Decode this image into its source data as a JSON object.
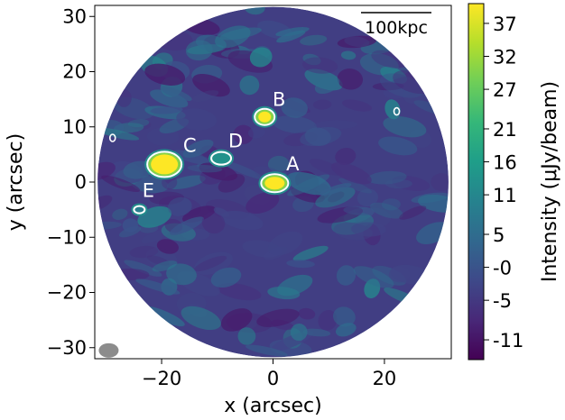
{
  "chart_data": {
    "type": "heatmap",
    "xlabel": "x (arcsec)",
    "ylabel": "y (arcsec)",
    "xlim": [
      -32,
      32
    ],
    "ylim": [
      -32,
      32
    ],
    "x_ticks": [
      -20,
      0,
      20
    ],
    "x_tick_labels": [
      "−20",
      "0",
      "20"
    ],
    "y_ticks": [
      30,
      20,
      10,
      0,
      -10,
      -20,
      -30
    ],
    "y_tick_labels": [
      "30",
      "20",
      "10",
      "0",
      "−10",
      "−20",
      "−30"
    ],
    "field_radius_arcsec": 31.5,
    "scale_bar_label": "100kpc",
    "beam": {
      "x": -29.5,
      "y": -30.5
    },
    "colorbar": {
      "label": "Intensity (μJy/beam)",
      "range": [
        -14,
        40
      ],
      "ticks": [
        37,
        32,
        27,
        21,
        16,
        11,
        5,
        0,
        -5,
        -11
      ],
      "tick_labels": [
        "37",
        "32",
        "27",
        "21",
        "16",
        "11",
        "5",
        "-0",
        "-5",
        "-11"
      ],
      "colormap": [
        "#440154",
        "#482878",
        "#3e4989",
        "#31688e",
        "#26828e",
        "#1f9e89",
        "#35b779",
        "#6ece58",
        "#b5de2b",
        "#fde725"
      ]
    },
    "sources": [
      {
        "label": "A",
        "x": 0.3,
        "y": -0.2
      },
      {
        "label": "B",
        "x": -1.5,
        "y": 11.8
      },
      {
        "label": "C",
        "x": -19.5,
        "y": 3.2
      },
      {
        "label": "D",
        "x": -9.3,
        "y": 4.3
      },
      {
        "label": "E",
        "x": -24.0,
        "y": -5.0
      }
    ],
    "extra_contours": [
      {
        "x": -28.8,
        "y": 8.0
      },
      {
        "x": 22.2,
        "y": 12.8
      }
    ]
  }
}
